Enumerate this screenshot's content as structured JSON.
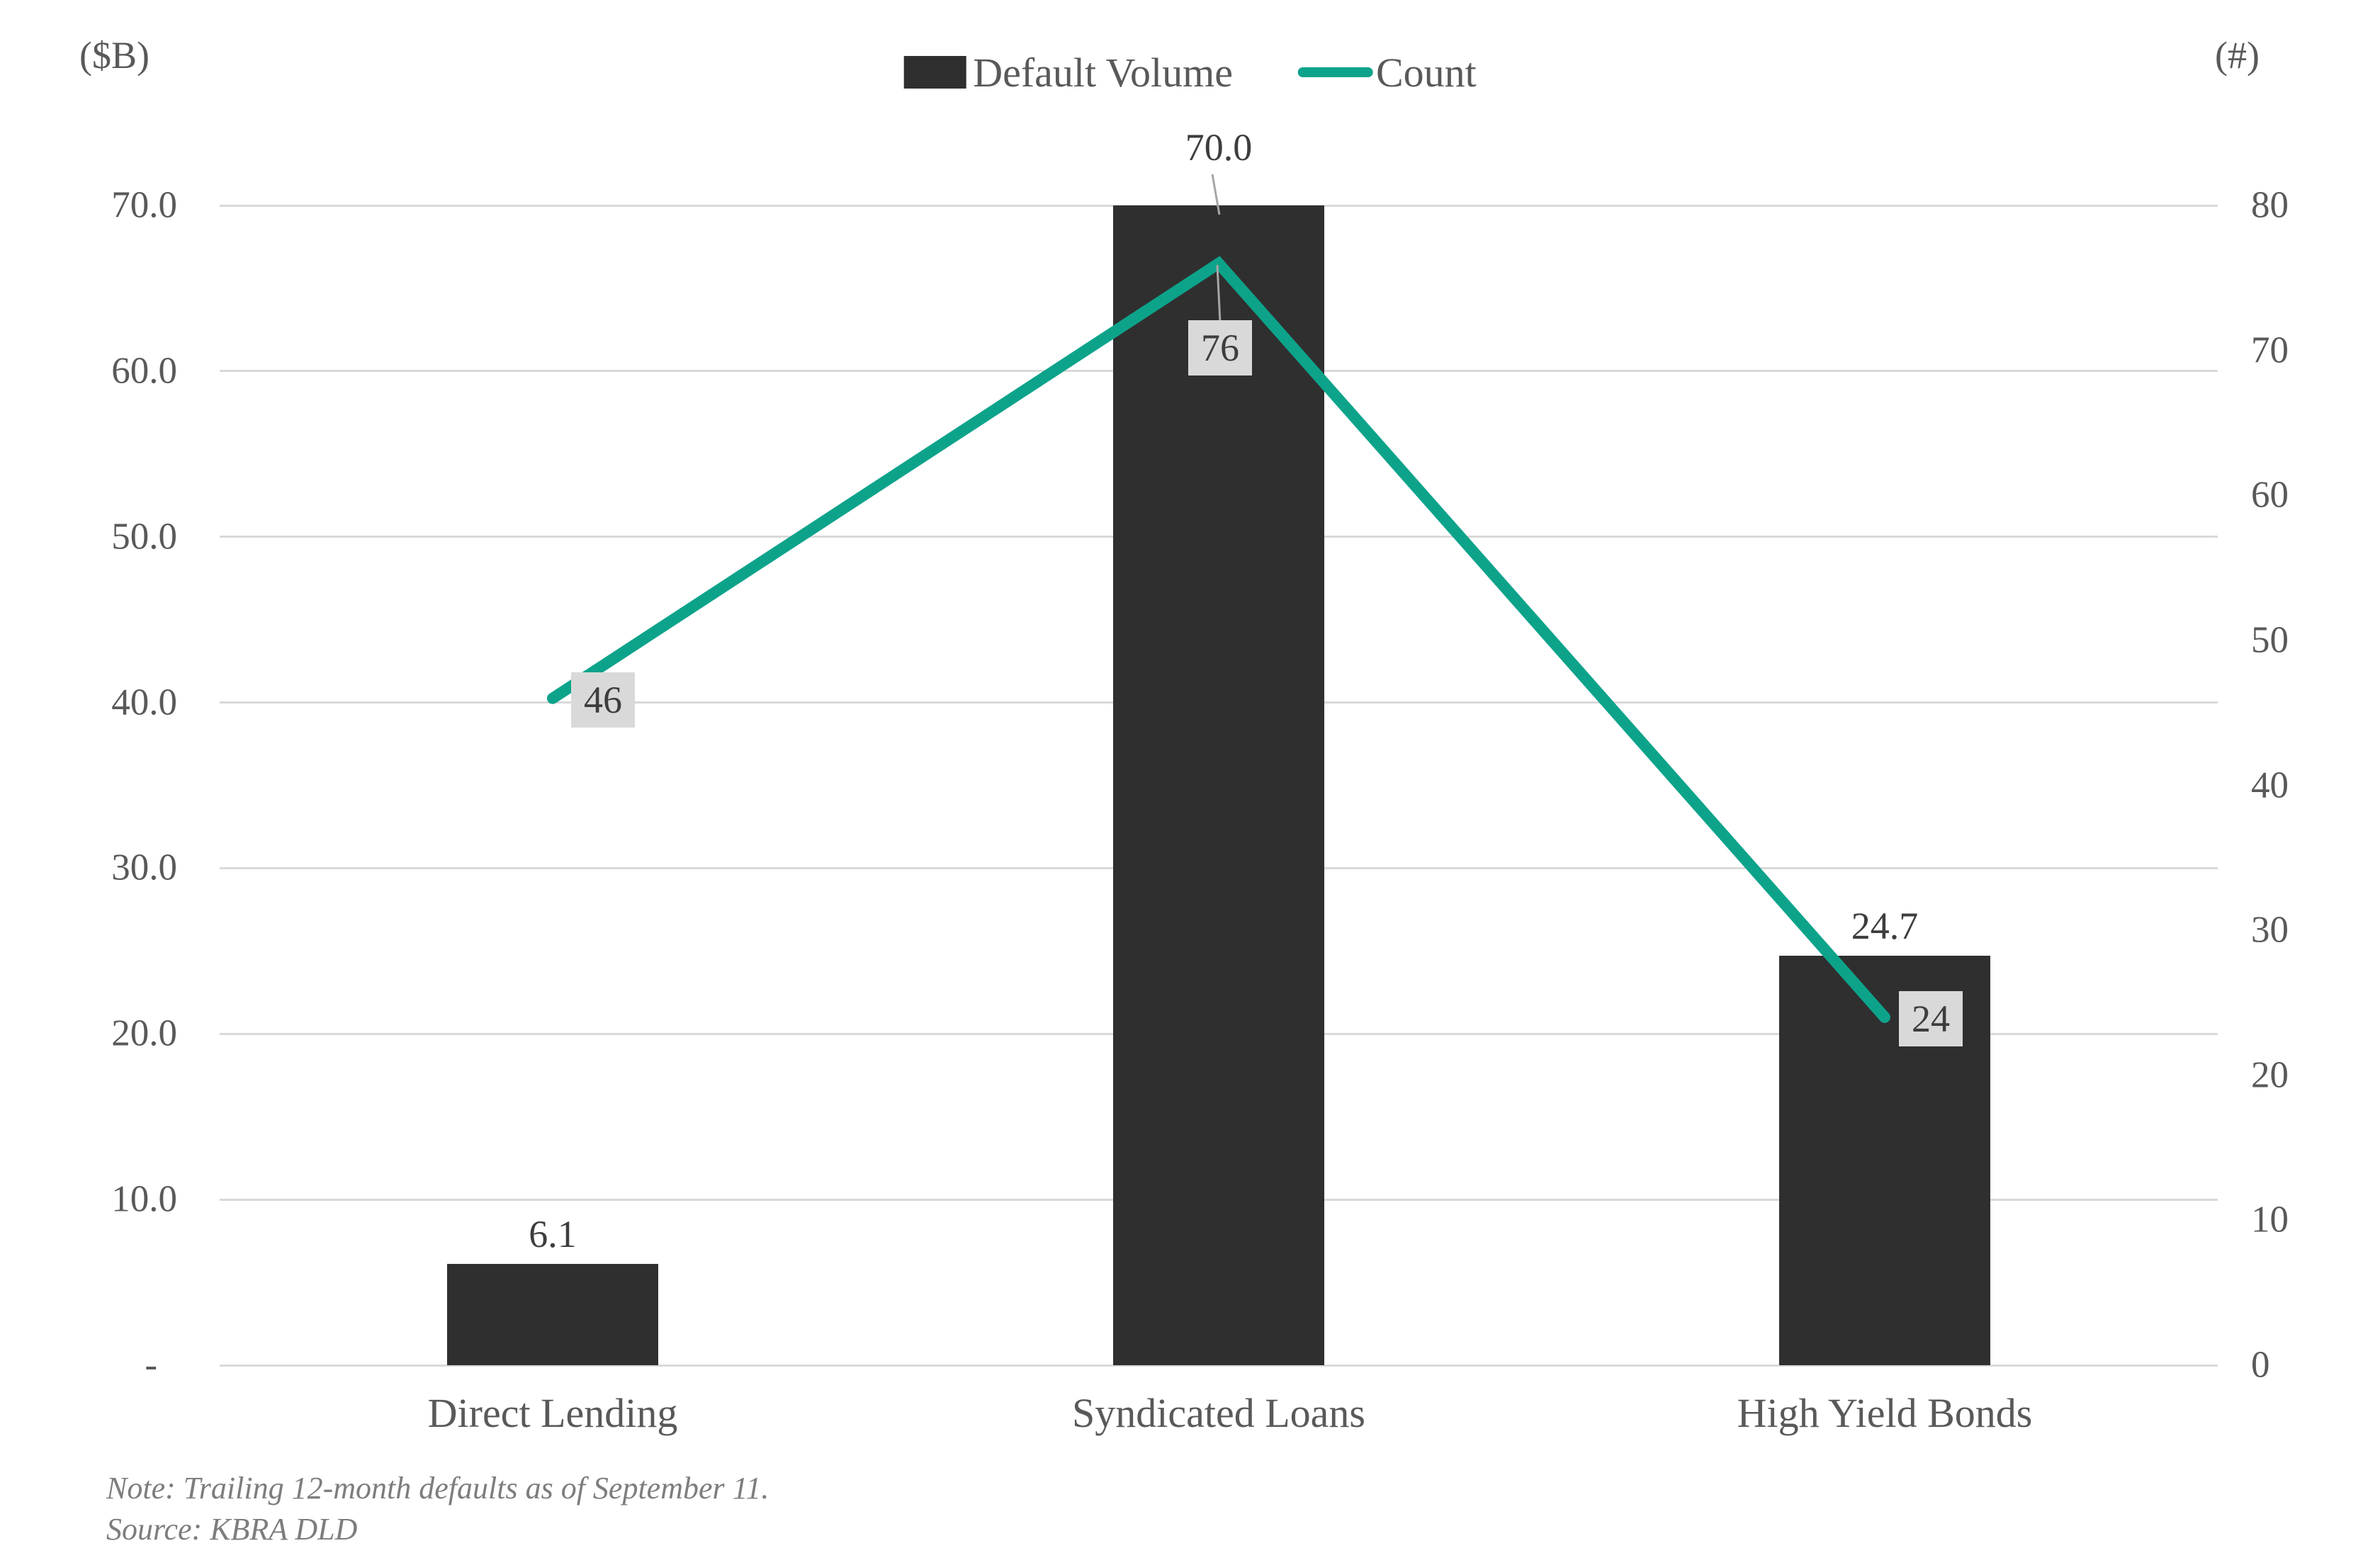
{
  "header": {
    "left_unit": "($B)",
    "right_unit": "(#)"
  },
  "legend": {
    "items": [
      {
        "label": "Default Volume",
        "marker": "bar-swatch"
      },
      {
        "label": "Count",
        "marker": "line-swatch"
      }
    ]
  },
  "notes": {
    "note": "Note: Trailing 12-month defaults as of September 11.",
    "source": "Source: KBRA DLD"
  },
  "colors": {
    "bar": "#2f2f2f",
    "line": "#0da38b",
    "grid": "#d9d9d9",
    "box": "#d9d9d9",
    "axis_text": "#595959",
    "data_label": "#3d3d3d",
    "note_text": "#7d7d7d",
    "leader": "#a6a6a6",
    "background": "#ffffff"
  },
  "chart_data": {
    "type": "bar",
    "subtype": "combo-bar-and-line-dual-axis",
    "title": "",
    "categories": [
      "Direct Lending",
      "Syndicated Loans",
      "High Yield Bonds"
    ],
    "series": [
      {
        "name": "Default Volume",
        "type": "bar",
        "axis": "left",
        "values": [
          6.1,
          70.0,
          24.7
        ],
        "value_labels": [
          "6.1",
          "70.0",
          "24.7"
        ]
      },
      {
        "name": "Count",
        "type": "line",
        "axis": "right",
        "values": [
          46,
          76,
          24
        ],
        "value_labels": [
          "46",
          "76",
          "24"
        ]
      }
    ],
    "left_axis": {
      "unit": "($B)",
      "min": 0,
      "max": 70,
      "tick_step": 10,
      "tick_labels": [
        "70.0",
        "60.0",
        "50.0",
        "40.0",
        "30.0",
        "20.0",
        "10.0",
        "-"
      ]
    },
    "right_axis": {
      "unit": "(#)",
      "min": 0,
      "max": 80,
      "tick_step": 10,
      "tick_labels": [
        "80",
        "70",
        "60",
        "50",
        "40",
        "30",
        "20",
        "10",
        "0"
      ]
    },
    "grid": "horizontal",
    "legend_position": "top-center"
  }
}
